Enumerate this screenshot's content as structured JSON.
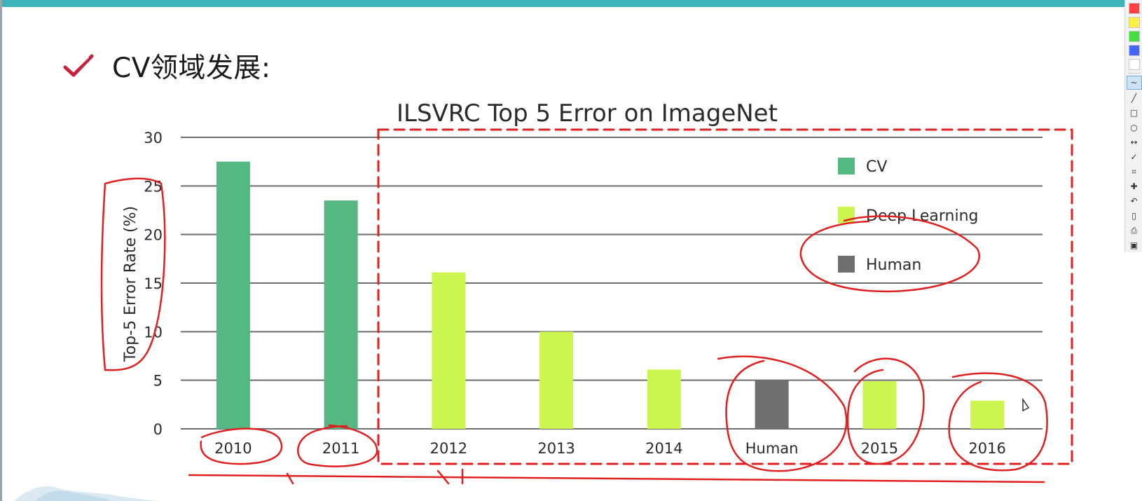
{
  "slide": {
    "heading": "CV领域发展:",
    "accent_color": "#3cb3b8",
    "check_color": "#c8203c"
  },
  "chart_data": {
    "type": "bar",
    "title": "ILSVRC Top 5 Error on ImageNet",
    "xlabel": "",
    "ylabel": "Top-5 Error Rate (%)",
    "ylim": [
      0,
      30
    ],
    "yticks": [
      0,
      5,
      10,
      15,
      20,
      25,
      30
    ],
    "categories": [
      "2010",
      "2011",
      "2012",
      "2013",
      "2014",
      "Human",
      "2015",
      "2016"
    ],
    "values": [
      27.5,
      23.5,
      16.1,
      10.0,
      6.1,
      5.0,
      4.9,
      2.9
    ],
    "groups": [
      "CV",
      "CV",
      "Deep Learning",
      "Deep Learning",
      "Deep Learning",
      "Human",
      "Deep Learning",
      "Deep Learning"
    ],
    "grid": true,
    "legend": {
      "placement": "top-right",
      "entries": [
        {
          "name": "CV",
          "color": "#55b882"
        },
        {
          "name": "Deep Learning",
          "color": "#ccf550"
        },
        {
          "name": "Human",
          "color": "#6f6f6f"
        }
      ]
    },
    "annotation_color": "#e02020"
  },
  "toolbar": {
    "swatches": [
      "#ff4040",
      "#ffee44",
      "#44dd44",
      "#4466ff",
      "#ffffff"
    ],
    "tools": [
      {
        "name": "freehand-tool",
        "glyph": "~",
        "active": true
      },
      {
        "name": "line-tool",
        "glyph": "╱",
        "active": false
      },
      {
        "name": "rectangle-tool",
        "glyph": "□",
        "active": false
      },
      {
        "name": "ellipse-tool",
        "glyph": "○",
        "active": false
      },
      {
        "name": "arrow-tool",
        "glyph": "↔",
        "active": false
      },
      {
        "name": "check-tool",
        "glyph": "✓",
        "active": false
      },
      {
        "name": "crop-tool",
        "glyph": "⌗",
        "active": false
      },
      {
        "name": "move-tool",
        "glyph": "✚",
        "active": false
      },
      {
        "name": "undo-tool",
        "glyph": "↶",
        "active": false
      },
      {
        "name": "new-page-tool",
        "glyph": "▯",
        "active": false
      },
      {
        "name": "print-tool",
        "glyph": "⎙",
        "active": false
      },
      {
        "name": "screenshot-tool",
        "glyph": "▣",
        "active": false
      }
    ]
  }
}
